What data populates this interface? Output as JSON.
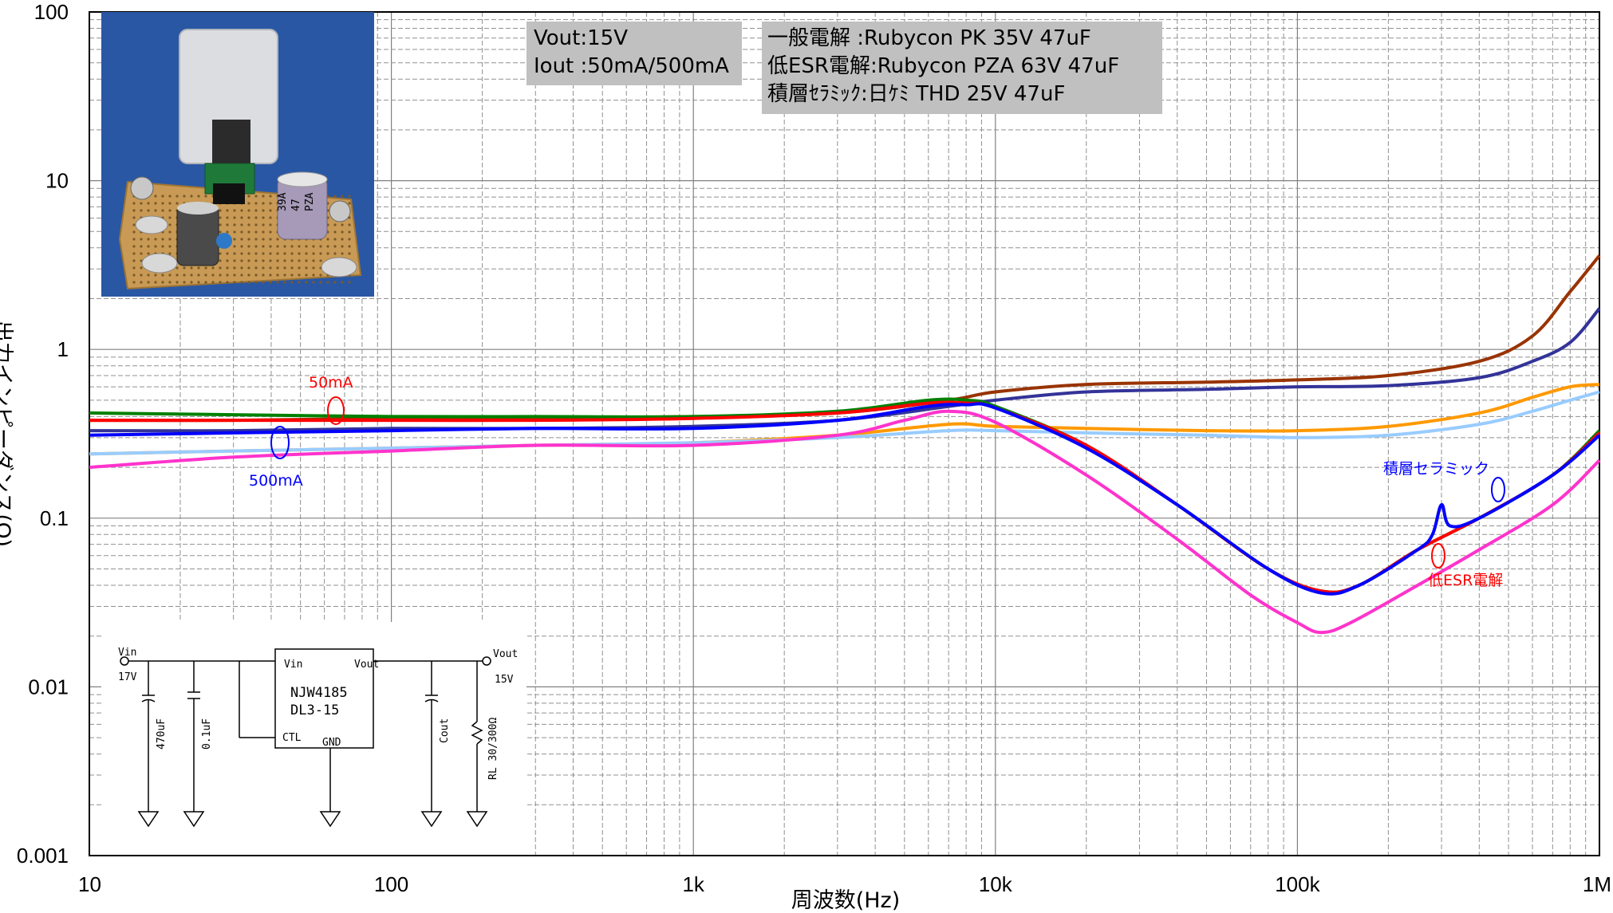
{
  "chart_data": {
    "type": "line",
    "xscale": "log",
    "yscale": "log",
    "xlim": [
      10,
      1000000
    ],
    "ylim": [
      0.001,
      100
    ],
    "xlabel": "周波数(Hz)",
    "ylabel": "出力インピーダンス(Ω)",
    "x_ticks": [
      "10",
      "100",
      "1k",
      "10k",
      "100k",
      "1M"
    ],
    "y_ticks": [
      "100",
      "10",
      "1",
      "0.1",
      "0.01",
      "0.001"
    ],
    "grid": true,
    "series": [
      {
        "color": "#993300",
        "x": [
          10,
          30,
          100,
          300,
          1000,
          3000,
          7000,
          10000,
          20000,
          50000,
          100000,
          200000,
          400000,
          600000,
          800000,
          1000000
        ],
        "y": [
          0.38,
          0.38,
          0.39,
          0.39,
          0.4,
          0.42,
          0.5,
          0.56,
          0.62,
          0.64,
          0.66,
          0.7,
          0.85,
          1.2,
          2.2,
          3.6
        ]
      },
      {
        "color": "#333399",
        "x": [
          10,
          30,
          100,
          300,
          1000,
          3000,
          7000,
          10000,
          20000,
          50000,
          100000,
          200000,
          400000,
          600000,
          800000,
          1000000
        ],
        "y": [
          0.33,
          0.33,
          0.34,
          0.34,
          0.35,
          0.38,
          0.46,
          0.5,
          0.56,
          0.58,
          0.6,
          0.61,
          0.68,
          0.85,
          1.1,
          1.75
        ]
      },
      {
        "color": "#ff9900",
        "x": [
          10,
          30,
          100,
          300,
          1000,
          3000,
          7000,
          10000,
          20000,
          50000,
          100000,
          200000,
          400000,
          600000,
          800000,
          1000000
        ],
        "y": [
          0.24,
          0.25,
          0.26,
          0.27,
          0.28,
          0.31,
          0.36,
          0.35,
          0.34,
          0.33,
          0.33,
          0.35,
          0.42,
          0.52,
          0.6,
          0.62
        ]
      },
      {
        "color": "#99ccff",
        "x": [
          10,
          30,
          100,
          300,
          1000,
          3000,
          7000,
          10000,
          20000,
          50000,
          100000,
          200000,
          400000,
          600000,
          800000,
          1000000
        ],
        "y": [
          0.24,
          0.25,
          0.26,
          0.27,
          0.28,
          0.3,
          0.33,
          0.33,
          0.32,
          0.31,
          0.3,
          0.31,
          0.36,
          0.43,
          0.5,
          0.56
        ]
      },
      {
        "color": "#008000",
        "x": [
          10,
          30,
          100,
          300,
          1000,
          3000,
          6000,
          8000,
          10000,
          20000,
          40000,
          80000,
          120000,
          160000,
          250000,
          400000,
          700000,
          1000000
        ],
        "y": [
          0.42,
          0.41,
          0.4,
          0.4,
          0.4,
          0.43,
          0.5,
          0.5,
          0.46,
          0.27,
          0.12,
          0.05,
          0.037,
          0.04,
          0.065,
          0.1,
          0.18,
          0.33
        ]
      },
      {
        "color": "#ff0000",
        "x": [
          10,
          30,
          100,
          300,
          1000,
          3000,
          6000,
          8000,
          10000,
          20000,
          40000,
          80000,
          120000,
          160000,
          250000,
          400000,
          700000,
          1000000
        ],
        "y": [
          0.38,
          0.38,
          0.38,
          0.38,
          0.39,
          0.42,
          0.48,
          0.48,
          0.45,
          0.27,
          0.12,
          0.05,
          0.037,
          0.04,
          0.065,
          0.1,
          0.18,
          0.32
        ]
      },
      {
        "color": "#0000ff",
        "x": [
          10,
          30,
          100,
          300,
          1000,
          3000,
          6000,
          8000,
          10000,
          20000,
          40000,
          80000,
          120000,
          160000,
          250000,
          280000,
          300000,
          320000,
          400000,
          700000,
          1000000
        ],
        "y": [
          0.31,
          0.32,
          0.33,
          0.34,
          0.34,
          0.38,
          0.46,
          0.47,
          0.45,
          0.26,
          0.12,
          0.05,
          0.036,
          0.04,
          0.065,
          0.08,
          0.12,
          0.09,
          0.1,
          0.18,
          0.31
        ]
      },
      {
        "color": "#ff33cc",
        "x": [
          10,
          30,
          100,
          300,
          1000,
          3000,
          5000,
          7000,
          10000,
          20000,
          40000,
          70000,
          100000,
          120000,
          150000,
          250000,
          400000,
          700000,
          1000000
        ],
        "y": [
          0.2,
          0.23,
          0.25,
          0.27,
          0.27,
          0.31,
          0.38,
          0.43,
          0.37,
          0.18,
          0.075,
          0.035,
          0.024,
          0.021,
          0.024,
          0.04,
          0.065,
          0.12,
          0.22
        ]
      }
    ],
    "annotations": [
      {
        "text": "50mA",
        "color": "#ff0000"
      },
      {
        "text": "500mA",
        "color": "#0000ff"
      },
      {
        "text": "積層セラミック",
        "color": "#0000ff"
      },
      {
        "text": "低ESR電解",
        "color": "#ff0000"
      }
    ]
  },
  "info_box_1": {
    "line1": "Vout:15V",
    "line2": "Iout :50mA/500mA"
  },
  "info_box_2": {
    "line1": "一般電解  :Rubycon PK 35V 47uF",
    "line2": "低ESR電解:Rubycon PZA 63V 47uF",
    "line3": "積層ｾﾗﾐｯｸ:日ｹﾐ THD 25V 47uF"
  },
  "photo": {
    "cap_marking_1": "39A",
    "cap_marking_2": "47",
    "cap_marking_3": "PZA"
  },
  "schematic": {
    "vin": "Vin",
    "vin_v": "17V",
    "vout": "Vout",
    "vout_v": "15V",
    "ic_vin": "Vin",
    "ic_vout": "Vout",
    "ic_name": "NJW4185",
    "ic_sub": "DL3-15",
    "ic_ctl": "CTL",
    "ic_gnd": "GND",
    "c1": "470uF",
    "c2": "0.1uF",
    "cout": "Cout",
    "rl": "RL 30/300Ω"
  }
}
